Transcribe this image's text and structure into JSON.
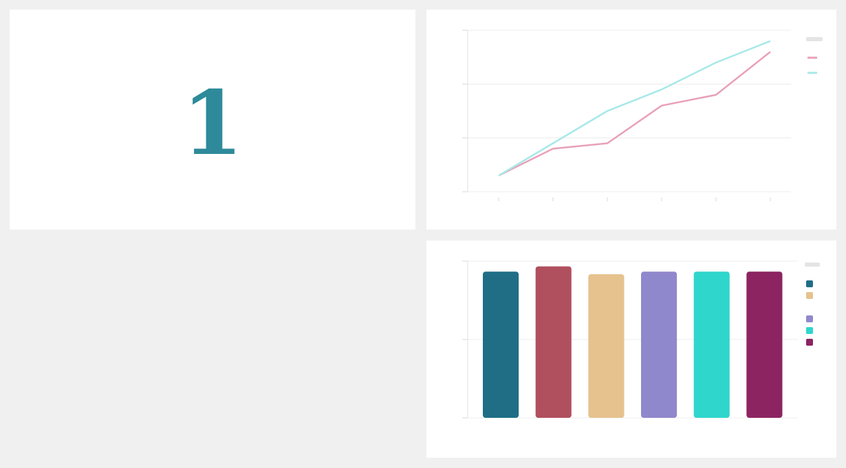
{
  "kpi": {
    "value": "1"
  },
  "line_chart": {
    "type": "line",
    "x": [
      1,
      2,
      3,
      4,
      5,
      6
    ],
    "xlabel": "",
    "ylabel": "",
    "ylim": [
      0,
      3
    ],
    "legend": {
      "placement": "right"
    },
    "series": [
      {
        "color": "#e8a0b8",
        "values": [
          0.3,
          0.8,
          0.9,
          1.6,
          1.8,
          2.6
        ]
      },
      {
        "color": "#a8e8e8",
        "values": [
          0.3,
          0.9,
          1.5,
          1.9,
          2.4,
          2.8
        ]
      }
    ],
    "grid": true
  },
  "bar_chart": {
    "type": "bar",
    "categories": [
      "",
      "",
      "",
      "",
      "",
      ""
    ],
    "values": [
      2.8,
      2.9,
      2.75,
      2.8,
      2.8,
      2.8
    ],
    "colors": [
      "#1f6e86",
      "#b0505e",
      "#e6c28e",
      "#9088cc",
      "#2fd6cc",
      "#8c2462"
    ],
    "xlabel": "",
    "ylabel": "",
    "ylim": [
      0,
      3
    ],
    "legend": {
      "placement": "right",
      "colors": [
        "#1f6e86",
        "#e6c28e",
        "#ffffff",
        "#9088cc",
        "#2fd6cc",
        "#8c2462"
      ]
    },
    "grid": true
  },
  "chart_data": [
    {
      "type": "line",
      "x": [
        1,
        2,
        3,
        4,
        5,
        6
      ],
      "series": [
        {
          "values": [
            0.3,
            0.8,
            0.9,
            1.6,
            1.8,
            2.6
          ]
        },
        {
          "values": [
            0.3,
            0.9,
            1.5,
            1.9,
            2.4,
            2.8
          ]
        }
      ],
      "ylim": [
        0,
        3
      ],
      "grid": true,
      "legend": "right"
    },
    {
      "type": "bar",
      "categories": [
        "",
        "",
        "",
        "",
        "",
        ""
      ],
      "values": [
        2.8,
        2.9,
        2.75,
        2.8,
        2.8,
        2.8
      ],
      "ylim": [
        0,
        3
      ],
      "grid": true,
      "legend": "right"
    }
  ]
}
